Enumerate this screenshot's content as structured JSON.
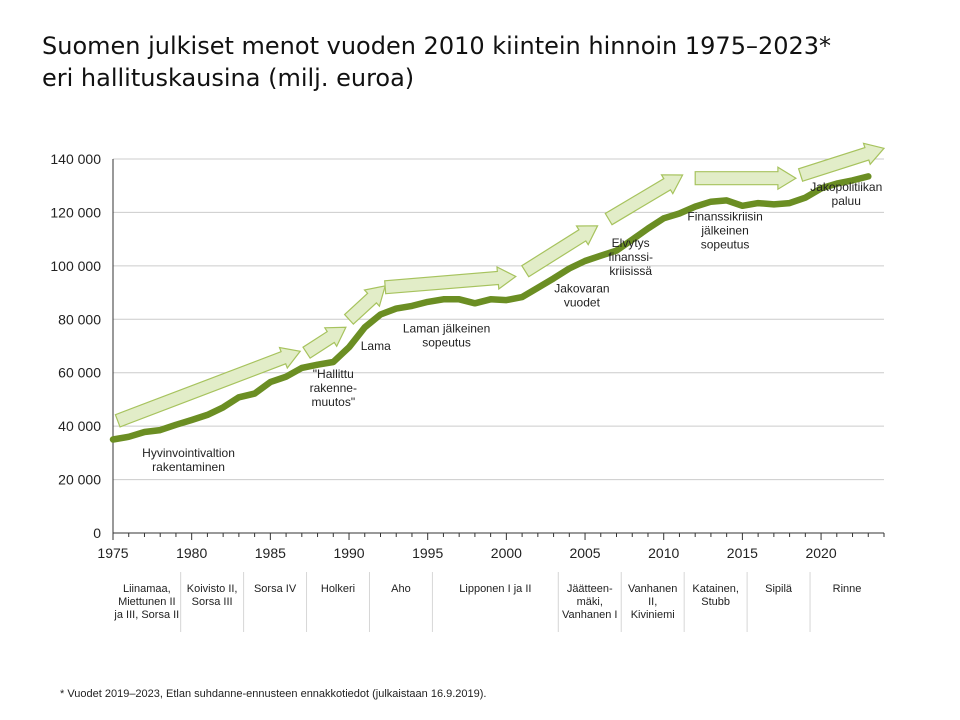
{
  "title_line1": "Suomen julkiset menot vuoden 2010 kiintein hinnoin 1975–2023*",
  "title_line2": "eri hallituskausina (milj. euroa)",
  "footnote": "* Vuodet 2019–2023, Etlan suhdanne-ennusteen ennakkotiedot (julkaistaan 16.9.2019).",
  "colors": {
    "line": "#6b8e23",
    "arrow_fill": "#e2edc8",
    "arrow_stroke": "#a7c35e",
    "grid": "#cccccc"
  },
  "chart_data": {
    "type": "line",
    "xlim": [
      1975,
      2024
    ],
    "ylim": [
      0,
      140000
    ],
    "x_ticks": [
      1975,
      1980,
      1985,
      1990,
      1995,
      2000,
      2005,
      2010,
      2015,
      2020
    ],
    "y_ticks": [
      0,
      20000,
      40000,
      60000,
      80000,
      100000,
      120000,
      140000
    ],
    "y_tick_labels": [
      "0",
      "20 000",
      "40 000",
      "60 000",
      "80 000",
      "100 000",
      "120 000",
      "140 000"
    ],
    "grid": true,
    "x": [
      1975,
      1976,
      1977,
      1978,
      1979,
      1980,
      1981,
      1982,
      1983,
      1984,
      1985,
      1986,
      1987,
      1988,
      1989,
      1990,
      1991,
      1992,
      1993,
      1994,
      1995,
      1996,
      1997,
      1998,
      1999,
      2000,
      2001,
      2002,
      2003,
      2004,
      2005,
      2006,
      2007,
      2008,
      2009,
      2010,
      2011,
      2012,
      2013,
      2014,
      2015,
      2016,
      2017,
      2018,
      2019,
      2020,
      2021,
      2022,
      2023
    ],
    "values": [
      35000,
      36000,
      37800,
      38500,
      40500,
      42300,
      44200,
      47000,
      50800,
      52200,
      56500,
      58500,
      61800,
      63000,
      64000,
      69500,
      77000,
      81800,
      84000,
      85000,
      86500,
      87500,
      87500,
      86000,
      87500,
      87200,
      88300,
      91800,
      95300,
      99000,
      101800,
      103800,
      105700,
      109800,
      114000,
      117800,
      119600,
      122200,
      124000,
      124500,
      122500,
      123500,
      123000,
      123500,
      125500,
      129000,
      130800,
      132000,
      133500
    ],
    "annotations": [
      {
        "lines": [
          "Hyvinvointivaltion",
          "rakentaminen"
        ],
        "x": 1979.8,
        "y": 28500
      },
      {
        "lines": [
          "\"Hallittu",
          "rakenne-",
          "muutos\""
        ],
        "x": 1989.0,
        "y": 58000
      },
      {
        "lines": [
          "Lama"
        ],
        "x": 1991.7,
        "y": 68500
      },
      {
        "lines": [
          "Laman jälkeinen",
          "sopeutus"
        ],
        "x": 1996.2,
        "y": 75000
      },
      {
        "lines": [
          "Jakovaran",
          "vuodet"
        ],
        "x": 2004.8,
        "y": 90000
      },
      {
        "lines": [
          "Elvytys",
          "finanssi-",
          "kriisissä"
        ],
        "x": 2007.9,
        "y": 107000
      },
      {
        "lines": [
          "Finanssikriisin",
          "jälkeinen",
          "sopeutus"
        ],
        "x": 2013.9,
        "y": 117000
      },
      {
        "lines": [
          "Jakopolitiikan",
          "paluu"
        ],
        "x": 2021.6,
        "y": 128000
      }
    ],
    "arrows": [
      {
        "from": [
          1975.3,
          42000
        ],
        "to": [
          1986.9,
          68000
        ]
      },
      {
        "from": [
          1987.3,
          67500
        ],
        "to": [
          1989.8,
          77000
        ]
      },
      {
        "from": [
          1990.0,
          80000
        ],
        "to": [
          1992.3,
          92500
        ]
      },
      {
        "from": [
          1992.3,
          92000
        ],
        "to": [
          2000.6,
          96000
        ]
      },
      {
        "from": [
          2001.2,
          98000
        ],
        "to": [
          2005.8,
          115000
        ]
      },
      {
        "from": [
          2006.5,
          117500
        ],
        "to": [
          2011.2,
          134000
        ]
      },
      {
        "from": [
          2012.0,
          132800
        ],
        "to": [
          2018.4,
          132800
        ]
      },
      {
        "from": [
          2018.7,
          134000
        ],
        "to": [
          2024.0,
          144000
        ]
      }
    ],
    "governments": [
      {
        "lines": [
          "Liinamaa,",
          "Miettunen II",
          "ja III, Sorsa II"
        ],
        "start": 1975.0,
        "end": 1979.3
      },
      {
        "lines": [
          "Koivisto II,",
          "Sorsa III"
        ],
        "start": 1979.3,
        "end": 1983.3
      },
      {
        "lines": [
          "Sorsa IV"
        ],
        "start": 1983.3,
        "end": 1987.3
      },
      {
        "lines": [
          "Holkeri"
        ],
        "start": 1987.3,
        "end": 1991.3
      },
      {
        "lines": [
          "Aho"
        ],
        "start": 1991.3,
        "end": 1995.3
      },
      {
        "lines": [
          "Lipponen I ja II"
        ],
        "start": 1995.3,
        "end": 2003.3
      },
      {
        "lines": [
          "Jäätteen-",
          "mäki,",
          "Vanhanen I"
        ],
        "start": 2003.3,
        "end": 2007.3
      },
      {
        "lines": [
          "Vanhanen",
          "II,",
          "Kiviniemi"
        ],
        "start": 2007.3,
        "end": 2011.3
      },
      {
        "lines": [
          "Katainen,",
          "Stubb"
        ],
        "start": 2011.3,
        "end": 2015.3
      },
      {
        "lines": [
          "Sipilä"
        ],
        "start": 2015.3,
        "end": 2019.3
      },
      {
        "lines": [
          "Rinne"
        ],
        "start": 2019.3,
        "end": 2024.0
      }
    ]
  }
}
